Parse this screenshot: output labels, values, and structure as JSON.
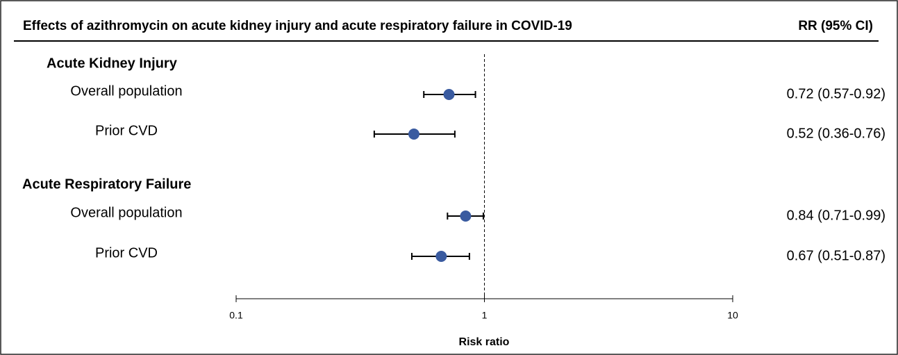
{
  "chart_data": {
    "type": "forest",
    "title": "Effects of azithromycin on acute kidney injury and acute respiratory failure in COVID-19",
    "column_header": "RR (95% CI)",
    "x_label": "Risk ratio",
    "log_scale": true,
    "xlim": [
      0.1,
      10
    ],
    "xticks": [
      0.1,
      1,
      10
    ],
    "reference_line": 1,
    "color": "#3a5ba0",
    "groups": [
      {
        "name": "Acute Kidney Injury",
        "categories": [
          "Overall population",
          "Prior CVD"
        ],
        "values": [
          0.72,
          0.52
        ],
        "lower": [
          0.57,
          0.36
        ],
        "upper": [
          0.92,
          0.76
        ],
        "value_labels": [
          "0.72 (0.57-0.92)",
          "0.52 (0.36-0.76)"
        ]
      },
      {
        "name": "Acute Respiratory Failure",
        "categories": [
          "Overall population",
          "Prior CVD"
        ],
        "values": [
          0.84,
          0.67
        ],
        "lower": [
          0.71,
          0.51
        ],
        "upper": [
          0.99,
          0.87
        ],
        "value_labels": [
          "0.84 (0.71-0.99)",
          "0.67 (0.51-0.87)"
        ]
      }
    ]
  }
}
